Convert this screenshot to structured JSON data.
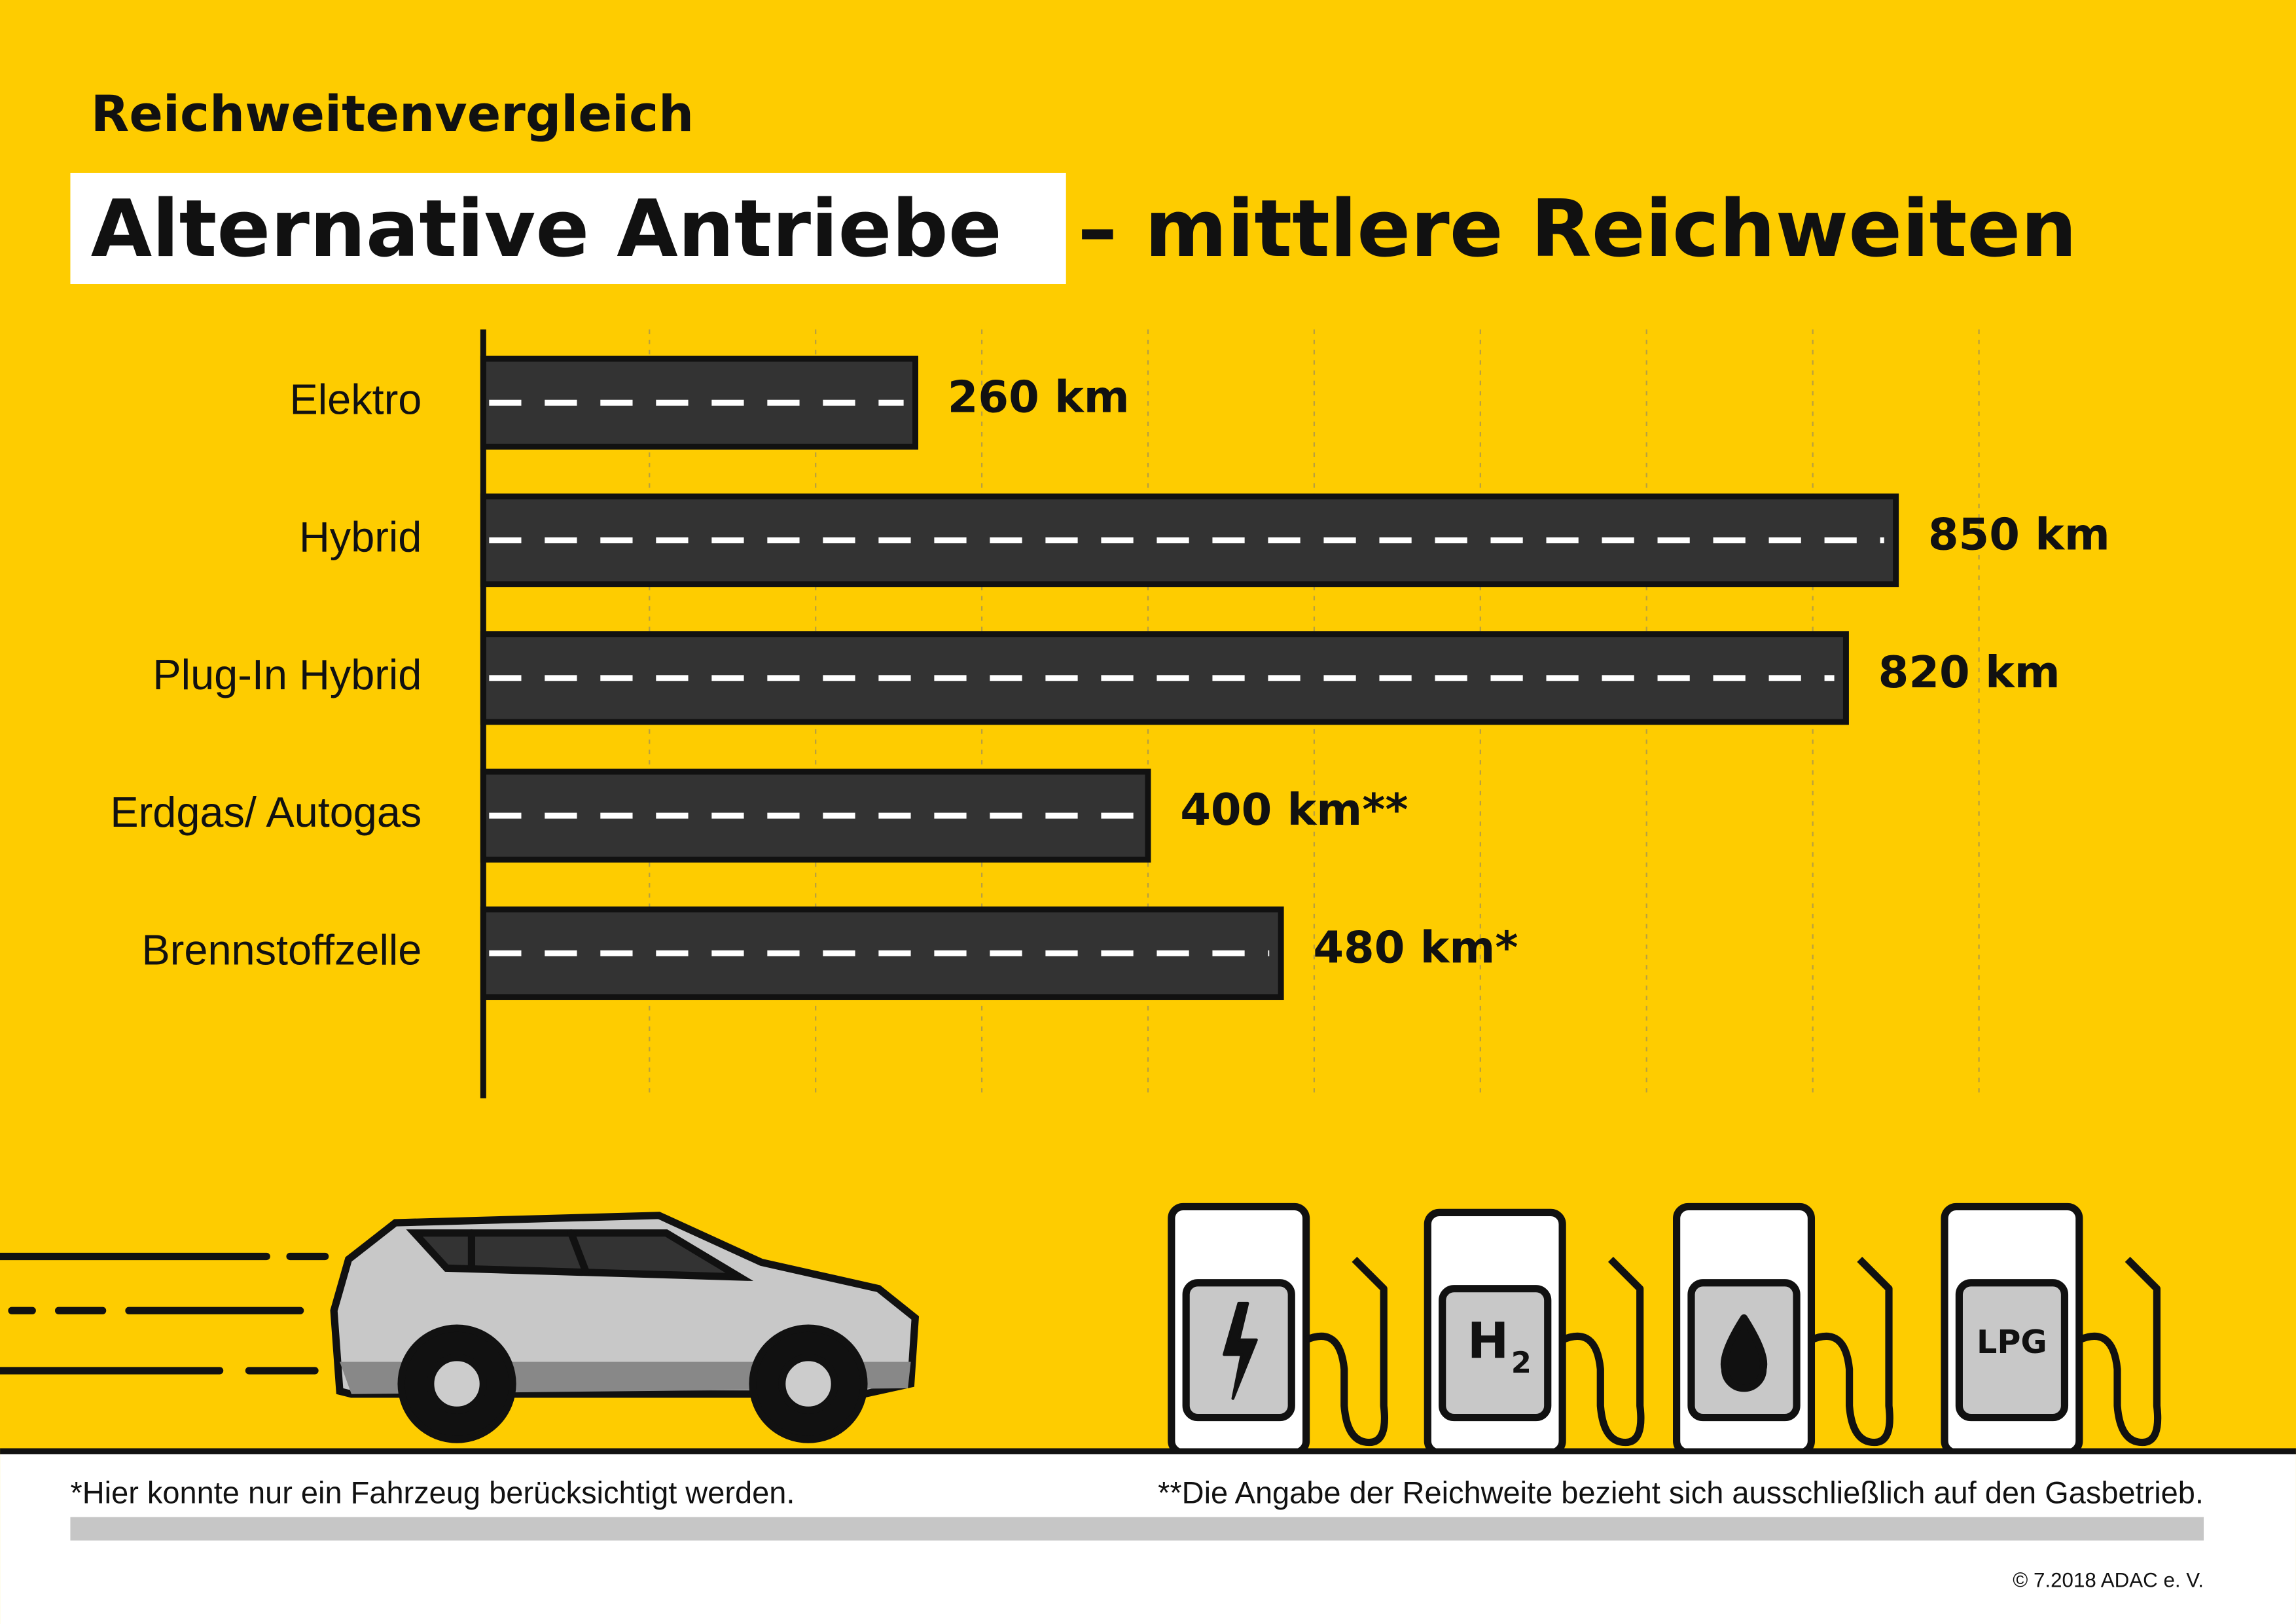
{
  "chart_data": {
    "type": "bar",
    "orientation": "horizontal",
    "supertitle": "Reichweitenvergleich",
    "title_highlight": "Alternative Antriebe",
    "title_rest": "– mittlere Reichweiten",
    "categories": [
      "Elektro",
      "Hybrid",
      "Plug-In Hybrid",
      "Erdgas/ Autogas",
      "Brennstoffzelle"
    ],
    "values": [
      260,
      850,
      820,
      400,
      480
    ],
    "value_labels": [
      "260 km",
      "850 km",
      "820 km",
      "400 km**",
      "480 km*"
    ],
    "color": "#333333",
    "xlim": [
      0,
      900
    ],
    "xticks": [
      0,
      100,
      200,
      300,
      400,
      500,
      600,
      700,
      800,
      900
    ],
    "grid": true,
    "footnotes": [
      "*Hier konnte nur ein Fahrzeug berücksichtigt werden.",
      "**Die Angabe der Reichweite bezieht sich ausschließlich auf den Gasbetrieb."
    ],
    "copyright": "© 7.2018 ADAC e. V.",
    "icons": {
      "hydrogen": "H",
      "hydrogen_index": "2",
      "lpg": "LPG"
    }
  }
}
